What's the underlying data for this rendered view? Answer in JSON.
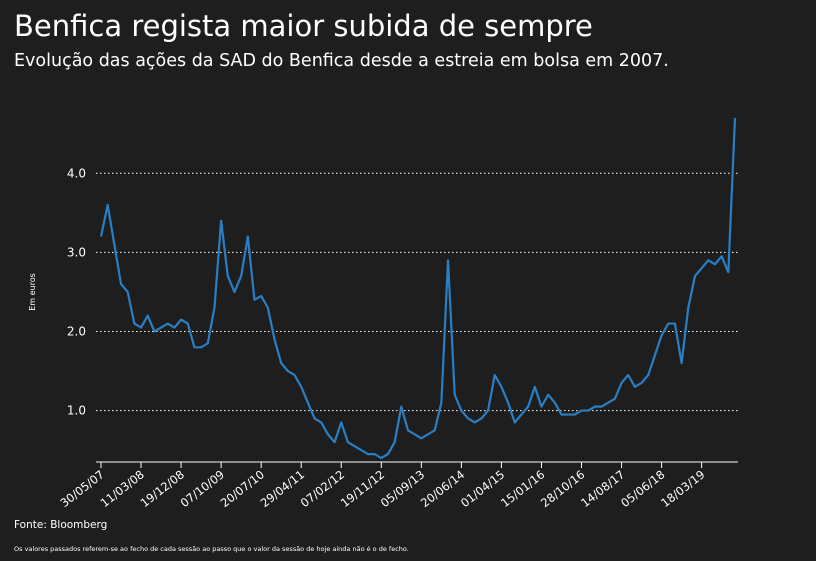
{
  "chart_data": {
    "type": "line",
    "title": "Benfica regista maior subida de sempre",
    "subtitle": "Evolução das ações da SAD do Benfica desde a estreia em bolsa em 2007.",
    "y_label": "Em euros",
    "source": "Fonte: Bloomberg",
    "note": "Os valores passados referem-se ao fecho de cada sessão ao passo que o valor da sessão de hoje ainda não é o de fecho.",
    "color": "#2a7fc4",
    "grid": true,
    "ylim": [
      0.35,
      4.8
    ],
    "yticks": [
      {
        "value": 1,
        "label": "1.0"
      },
      {
        "value": 2,
        "label": "2.0"
      },
      {
        "value": 3,
        "label": "3.0"
      },
      {
        "value": 4,
        "label": "4.0"
      }
    ],
    "categories": [
      "30/05/07",
      null,
      null,
      null,
      null,
      null,
      "11/03/08",
      null,
      null,
      null,
      null,
      null,
      "19/12/08",
      null,
      null,
      null,
      null,
      null,
      "07/10/09",
      null,
      null,
      null,
      null,
      null,
      "20/07/10",
      null,
      null,
      null,
      null,
      null,
      "29/04/11",
      null,
      null,
      null,
      null,
      null,
      "07/02/12",
      null,
      null,
      null,
      null,
      null,
      "19/11/12",
      null,
      null,
      null,
      null,
      null,
      "05/09/13",
      null,
      null,
      null,
      null,
      null,
      "20/06/14",
      null,
      null,
      null,
      null,
      null,
      "01/04/15",
      null,
      null,
      null,
      null,
      null,
      "15/01/16",
      null,
      null,
      null,
      null,
      null,
      "28/10/16",
      null,
      null,
      null,
      null,
      null,
      "14/08/17",
      null,
      null,
      null,
      null,
      null,
      "05/06/18",
      null,
      null,
      null,
      null,
      null,
      "18/03/19",
      null,
      null,
      null,
      null,
      null
    ],
    "values": [
      3.2,
      3.6,
      3.1,
      2.6,
      2.5,
      2.1,
      2.05,
      2.2,
      2.0,
      2.05,
      2.1,
      2.05,
      2.15,
      2.1,
      1.8,
      1.8,
      1.85,
      2.3,
      3.4,
      2.7,
      2.5,
      2.7,
      3.2,
      2.4,
      2.45,
      2.3,
      1.9,
      1.6,
      1.5,
      1.45,
      1.3,
      1.1,
      0.9,
      0.85,
      0.7,
      0.6,
      0.85,
      0.6,
      0.55,
      0.5,
      0.45,
      0.45,
      0.4,
      0.45,
      0.6,
      1.05,
      0.75,
      0.7,
      0.65,
      0.7,
      0.75,
      1.1,
      2.9,
      1.2,
      1.0,
      0.9,
      0.85,
      0.9,
      1.0,
      1.45,
      1.3,
      1.1,
      0.85,
      0.95,
      1.05,
      1.3,
      1.05,
      1.2,
      1.1,
      0.95,
      0.95,
      0.95,
      1.0,
      1.0,
      1.05,
      1.05,
      1.1,
      1.15,
      1.35,
      1.45,
      1.3,
      1.35,
      1.45,
      1.7,
      1.95,
      2.1,
      2.1,
      1.6,
      2.3,
      2.7,
      2.8,
      2.9,
      2.85,
      2.95,
      2.75,
      4.7
    ]
  }
}
